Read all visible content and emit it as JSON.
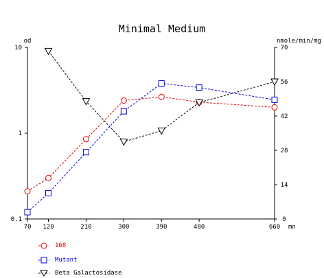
{
  "chart_data": {
    "type": "line",
    "title": "Minimal Medium",
    "y_left_label": "od",
    "y_right_label": "nmole/min/mg",
    "x_unit": "mn",
    "x": [
      70,
      120,
      210,
      300,
      390,
      480,
      660
    ],
    "x_ticks": [
      "70",
      "120",
      "210",
      "300",
      "390",
      "480",
      "660"
    ],
    "y_left_scale": "log",
    "y_left_range": [
      0.1,
      10
    ],
    "y_left_ticks": [
      "0.1",
      "1",
      "10"
    ],
    "y_right_range": [
      0,
      70
    ],
    "y_right_ticks": [
      "0",
      "14",
      "28",
      "42",
      "56",
      "70"
    ],
    "series": [
      {
        "name": "168",
        "axis": "left",
        "marker": "circle",
        "color": "#e00000",
        "x": [
          70,
          120,
          210,
          300,
          390,
          480,
          660
        ],
        "values": [
          0.21,
          0.3,
          0.85,
          2.4,
          2.65,
          2.3,
          2.0
        ]
      },
      {
        "name": "Mutant",
        "axis": "left",
        "marker": "square",
        "color": "#0000e0",
        "x": [
          70,
          120,
          210,
          300,
          390,
          480,
          660
        ],
        "values": [
          0.12,
          0.2,
          0.6,
          1.8,
          3.8,
          3.4,
          2.45
        ]
      },
      {
        "name": "Beta Galactosidase",
        "axis": "right",
        "marker": "triangle-down",
        "color": "#000000",
        "x": [
          120,
          210,
          300,
          390,
          480,
          660
        ],
        "values": [
          68.5,
          48,
          31.5,
          36,
          47.5,
          56
        ]
      }
    ],
    "legend_position": "bottom-left",
    "grid": false
  }
}
